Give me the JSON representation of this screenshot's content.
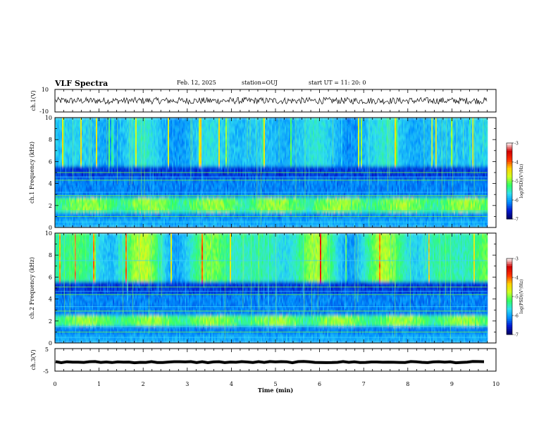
{
  "header": {
    "title": "VLF Spectra",
    "date": "Feb. 12, 2025",
    "station": "station=OUJ",
    "start_ut": "start  UT =   11: 20: 0"
  },
  "chart_data": [
    {
      "type": "line",
      "name": "ch1-waveform",
      "ylabel": "ch.1(V)",
      "ylim": [
        -10,
        10
      ],
      "yticks": [
        "10",
        "-10"
      ],
      "xlim": [
        0,
        10
      ],
      "approx_level": 0,
      "approx_noise_amplitude": 3
    },
    {
      "type": "heatmap",
      "name": "ch1-spectrogram",
      "ylabel": "ch.1  Frequency (kHz)",
      "ylim": [
        0,
        10
      ],
      "yticks": [
        "0",
        "2",
        "4",
        "6",
        "8",
        "10"
      ],
      "xlim": [
        0,
        10
      ],
      "data_end_min": 9.8,
      "persistent_lines_khz": [
        0.5,
        1.0,
        1.5,
        2.9,
        3.2,
        4.3,
        4.6,
        5.0
      ],
      "enhanced_band_khz": [
        1.4,
        2.6
      ],
      "colorbar": {
        "label": "log(PSD)(V²/Hz)",
        "range": [
          -7,
          -3
        ],
        "ticks": [
          "-3",
          "-4",
          "-5",
          "-6",
          "-7"
        ],
        "colors": [
          "#000060",
          "#0018d0",
          "#0090ff",
          "#30e0f0",
          "#30ff60",
          "#d0ff20",
          "#ffd000",
          "#ff3000",
          "#d00000",
          "#ffffff"
        ]
      }
    },
    {
      "type": "heatmap",
      "name": "ch2-spectrogram",
      "ylabel": "ch.2  Frequency (kHz)",
      "ylim": [
        0,
        10
      ],
      "yticks": [
        "0",
        "2",
        "4",
        "6",
        "8",
        "10"
      ],
      "xlim": [
        0,
        10
      ],
      "data_end_min": 9.8,
      "persistent_lines_khz": [
        0.5,
        1.0,
        1.5,
        2.9,
        3.3,
        4.4,
        4.7,
        5.1,
        7.5
      ],
      "enhanced_band_khz": [
        1.5,
        2.5
      ],
      "colorbar": {
        "label": "log(PSD)(V²/Hz)",
        "range": [
          -7,
          -3
        ],
        "ticks": [
          "-3",
          "-4",
          "-5",
          "-6",
          "-7"
        ],
        "colors": [
          "#000060",
          "#0018d0",
          "#0090ff",
          "#30e0f0",
          "#30ff60",
          "#d0ff20",
          "#ffd000",
          "#ff3000",
          "#d00000",
          "#ffffff"
        ]
      }
    },
    {
      "type": "line",
      "name": "ch3-waveform",
      "ylabel": "ch.3(V)",
      "ylim": [
        -5,
        5
      ],
      "yticks": [
        "5",
        "-5"
      ],
      "xlim": [
        0,
        10
      ],
      "approx_level": -1,
      "approx_noise_amplitude": 0.3
    }
  ],
  "xaxis": {
    "label": "Time  (min)",
    "ticks": [
      "0",
      "1",
      "2",
      "3",
      "4",
      "5",
      "6",
      "7",
      "8",
      "9",
      "10"
    ]
  }
}
